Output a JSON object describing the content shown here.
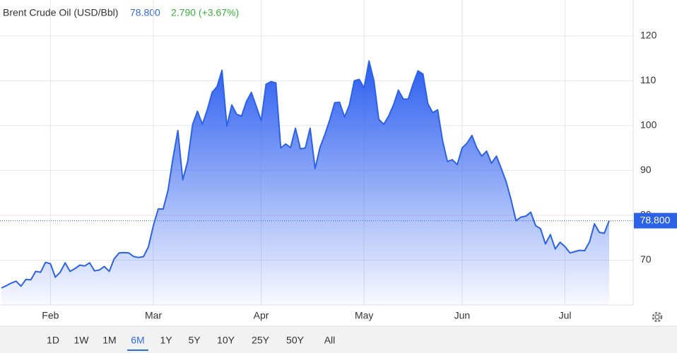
{
  "chart_data": {
    "type": "area",
    "title": "Brent Crude Oil (USD/Bbl)",
    "price": "78.800",
    "change": "2.790 (+3.67%)",
    "color": "#2c62e6",
    "ylim": [
      60,
      128
    ],
    "yticks": [
      70,
      80,
      90,
      100,
      110,
      120
    ],
    "grid": true,
    "categories": [
      null,
      null,
      null,
      null,
      null,
      null,
      null,
      null,
      null,
      null,
      "Feb",
      null,
      null,
      null,
      null,
      null,
      null,
      null,
      null,
      null,
      null,
      null,
      null,
      null,
      null,
      null,
      null,
      null,
      null,
      null,
      null,
      "Mar",
      null,
      null,
      null,
      null,
      null,
      null,
      null,
      null,
      null,
      null,
      null,
      null,
      null,
      null,
      null,
      null,
      null,
      null,
      null,
      null,
      null,
      "Apr",
      null,
      null,
      null,
      null,
      null,
      null,
      null,
      null,
      null,
      null,
      null,
      null,
      null,
      null,
      null,
      null,
      null,
      null,
      null,
      null,
      "May",
      null,
      null,
      null,
      null,
      null,
      null,
      null,
      null,
      null,
      null,
      null,
      null,
      null,
      null,
      null,
      null,
      null,
      null,
      null,
      "Jun",
      null,
      null,
      null,
      null,
      null,
      null,
      null,
      null,
      null,
      null,
      null,
      null,
      null,
      null,
      null,
      null,
      null,
      null,
      null,
      null,
      "Jul",
      null,
      null,
      null,
      null,
      null,
      null,
      null,
      null,
      null
    ],
    "values": [
      63.8,
      64.3,
      64.9,
      65.3,
      64.2,
      65.7,
      65.6,
      67.5,
      67.3,
      69.5,
      69.2,
      66.2,
      67.3,
      69.4,
      67.5,
      68.1,
      68.9,
      68.7,
      69.4,
      67.6,
      67.8,
      68.6,
      67.5,
      70.3,
      71.6,
      71.7,
      71.6,
      70.8,
      70.6,
      70.8,
      73.0,
      77.7,
      81.4,
      81.4,
      85.6,
      92.7,
      98.9,
      87.9,
      92.0,
      100.2,
      103.2,
      100.3,
      103.5,
      107.4,
      108.7,
      112.3,
      99.9,
      104.6,
      102.5,
      102.1,
      105.4,
      107.4,
      104.3,
      101.1,
      109.2,
      109.8,
      109.5,
      95.0,
      95.9,
      95.1,
      99.4,
      94.8,
      95.0,
      99.4,
      90.4,
      95.1,
      98.0,
      101.3,
      105.1,
      105.2,
      101.9,
      104.6,
      110.0,
      110.3,
      108.4,
      114.4,
      110.0,
      101.4,
      100.3,
      102.1,
      104.6,
      107.9,
      105.9,
      105.9,
      109.3,
      112.2,
      111.5,
      104.9,
      102.9,
      103.5,
      96.7,
      92.0,
      92.4,
      91.3,
      95.0,
      96.1,
      97.8,
      95.0,
      93.2,
      94.3,
      91.6,
      93.2,
      90.4,
      87.4,
      83.4,
      78.8,
      79.6,
      79.8,
      80.7,
      77.7,
      77.0,
      73.6,
      75.7,
      72.5,
      74.0,
      73.0,
      71.6,
      71.9,
      72.2,
      72.1,
      74.1,
      78.1,
      76.2,
      76.0,
      78.8
    ],
    "range_buttons": [
      "1D",
      "1W",
      "1M",
      "6M",
      "1Y",
      "5Y",
      "10Y",
      "25Y",
      "50Y",
      "All"
    ],
    "active_range": "6M"
  }
}
